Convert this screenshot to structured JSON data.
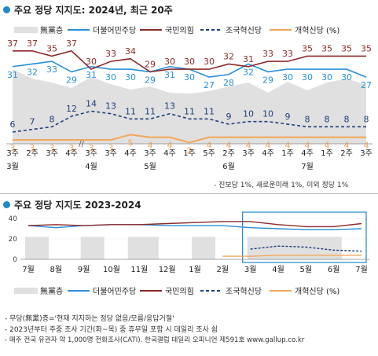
{
  "chart1": {
    "title": "주요 정당 지지도: 2024년, 최근 20주",
    "footnote": "- 진보당 1%, 새로운미래 1%, 이외 정당 1%",
    "legend": [
      "無黨층",
      "더불어민주당",
      "국민의힘",
      "조국혁신당",
      "개혁신당 (%)"
    ],
    "week_labels": [
      "3주",
      "2주",
      "3주",
      "4주",
      "3주",
      "3주",
      "4주",
      "3주",
      "4주",
      "1주",
      "5주",
      "2주",
      "3주",
      "4주",
      "1주",
      "4주",
      "1주",
      "2주",
      "3주"
    ],
    "month_labels": [
      {
        "text": "3월",
        "col": 0
      },
      {
        "text": "4월",
        "col": 4
      },
      {
        "text": "5월",
        "col": 7
      },
      {
        "text": "6월",
        "col": 11
      },
      {
        "text": "7월",
        "col": 15
      }
    ]
  },
  "chart2": {
    "title": "주요 정당 지지도 2023-2024",
    "month_labels": [
      "7월",
      "8월",
      "9월",
      "10월",
      "11월",
      "12월",
      "1월",
      "2월",
      "3월",
      "4월",
      "5월",
      "6월",
      "7월"
    ],
    "ylim": [
      0,
      40
    ],
    "yticks": [
      0,
      20,
      40
    ]
  },
  "colors": {
    "dpk": "#2a8fd8",
    "ppp": "#8b2b2b",
    "rebuilding": "#1f3f7a",
    "reform": "#f2a65a",
    "nonpartisan": "#e0e0e0",
    "highlight": "#1e88c9"
  },
  "notes": [
    "- 무당(無黨)층='현재 지지하는 정당 없음/모름/응답거절'",
    "- 2023년부터 주중 조사 기간(화~목) 중 휴무일 포함 시 데일리 조사 쉼",
    "- 매주 전국 유권자 약 1,000명 전화조사(CATI). 한국갤럽 데일리 오피니언 제591호 www.gallup.co.kr"
  ],
  "chart_data": [
    {
      "type": "line",
      "title": "주요 정당 지지도: 2024년, 최근 20주",
      "categories": [
        "3월 3주",
        "3월 2주",
        "3월 3주",
        "3월 4주",
        "4월 3주",
        "4월 3주",
        "4월 4주",
        "5월 3주",
        "5월 4주",
        "5월 1주",
        "5월 5주",
        "6월 2주",
        "6월 3주",
        "6월 4주",
        "7월 1주",
        "7월 4주",
        "7월 1주",
        "7월 2주",
        "7월 3주"
      ],
      "series": [
        {
          "name": "더불어민주당",
          "values": [
            31,
            32,
            33,
            29,
            31,
            30,
            30,
            29,
            31,
            30,
            27,
            28,
            32,
            29,
            30,
            30,
            30,
            30,
            27
          ]
        },
        {
          "name": "국민의힘",
          "values": [
            37,
            37,
            35,
            37,
            30,
            33,
            34,
            29,
            30,
            30,
            30,
            32,
            31,
            33,
            33,
            35,
            35,
            35,
            35
          ]
        },
        {
          "name": "조국혁신당",
          "values": [
            6,
            7,
            8,
            12,
            14,
            13,
            11,
            11,
            13,
            11,
            11,
            9,
            10,
            10,
            9,
            8,
            8,
            8,
            8
          ]
        },
        {
          "name": "개혁신당",
          "values": [
            3,
            3,
            3,
            3,
            3,
            3,
            5,
            4,
            4,
            2,
            4,
            4,
            4,
            4,
            4,
            4,
            4,
            4,
            4
          ]
        }
      ],
      "nonpartisan_fill": true,
      "legend_position": "top"
    },
    {
      "type": "line",
      "title": "주요 정당 지지도 2023-2024",
      "x": [
        "7월",
        "8월",
        "9월",
        "10월",
        "11월",
        "12월",
        "1월",
        "2월",
        "3월",
        "4월",
        "5월",
        "6월",
        "7월"
      ],
      "series": [
        {
          "name": "더불어민주당",
          "values": [
            33,
            31,
            33,
            34,
            34,
            33,
            33,
            33,
            31,
            30,
            29,
            29,
            30
          ]
        },
        {
          "name": "국민의힘",
          "values": [
            33,
            34,
            33,
            34,
            34,
            35,
            36,
            37,
            37,
            34,
            32,
            32,
            35
          ]
        },
        {
          "name": "조국혁신당",
          "values": [
            null,
            null,
            null,
            null,
            null,
            null,
            null,
            null,
            10,
            13,
            12,
            9,
            8
          ]
        },
        {
          "name": "개혁신당",
          "values": [
            null,
            null,
            null,
            null,
            null,
            null,
            null,
            3,
            3,
            4,
            4,
            4,
            4
          ]
        }
      ],
      "ylim": [
        0,
        40
      ],
      "legend_position": "bottom"
    }
  ]
}
